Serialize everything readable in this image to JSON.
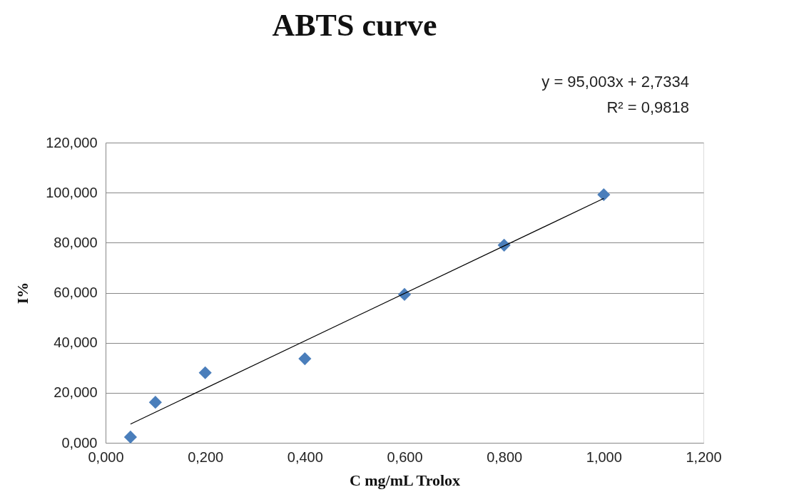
{
  "chart_data": {
    "type": "scatter",
    "title": "ABTS curve",
    "xlabel": "C mg/mL Trolox",
    "ylabel": "I%",
    "x": [
      0.05,
      0.1,
      0.2,
      0.4,
      0.6,
      0.8,
      1.0
    ],
    "series": [
      {
        "color": "#4a7ebb",
        "marker": "diamond",
        "values": [
          2.3,
          16.2,
          28,
          33.6,
          59.3,
          79,
          99.2
        ]
      },
      {
        "type": "line",
        "color": "#000000",
        "line_style": "solid",
        "x": [
          0.05,
          1.0
        ],
        "values": [
          7.5,
          97.7
        ]
      }
    ],
    "xlim": [
      0,
      1.2
    ],
    "ylim": [
      0,
      120
    ],
    "xticks": [
      {
        "value": 0,
        "label": "0,000"
      },
      {
        "value": 0.2,
        "label": "0,200"
      },
      {
        "value": 0.4,
        "label": "0,400"
      },
      {
        "value": 0.6,
        "label": "0,600"
      },
      {
        "value": 0.8,
        "label": "0,800"
      },
      {
        "value": 1.0,
        "label": "1,000"
      },
      {
        "value": 1.2,
        "label": "1,200"
      }
    ],
    "yticks": [
      {
        "value": 0,
        "label": "0,000"
      },
      {
        "value": 20,
        "label": "20,000"
      },
      {
        "value": 40,
        "label": "40,000"
      },
      {
        "value": 60,
        "label": "60,000"
      },
      {
        "value": 80,
        "label": "80,000"
      },
      {
        "value": 100,
        "label": "100,000"
      },
      {
        "value": 120,
        "label": "120,000"
      }
    ],
    "grid": "y",
    "legend": false,
    "annotations": [
      "y = 95,003x + 2,7334",
      "R² = 0,9818"
    ]
  }
}
